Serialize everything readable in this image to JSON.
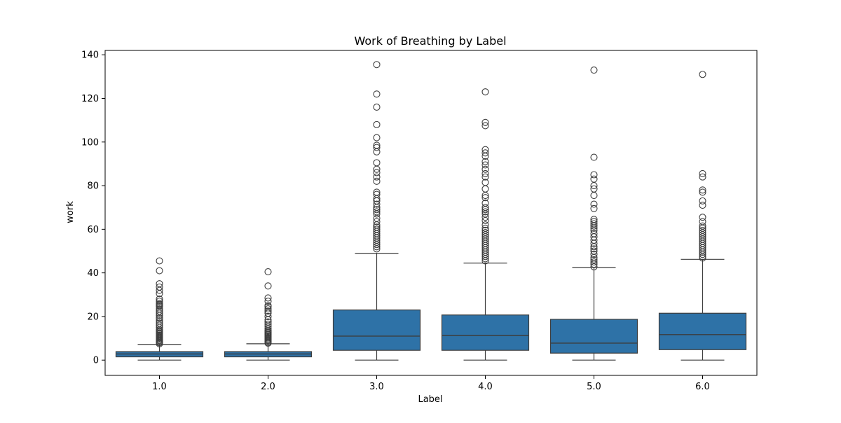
{
  "chart_data": {
    "type": "box",
    "title": "Work of Breathing by Label",
    "xlabel": "Label",
    "ylabel": "work",
    "categories": [
      "1.0",
      "2.0",
      "3.0",
      "4.0",
      "5.0",
      "6.0"
    ],
    "ylim": [
      -7,
      142
    ],
    "yticks": [
      0,
      20,
      40,
      60,
      80,
      100,
      120,
      140
    ],
    "grid": false,
    "color": "#2e72a7",
    "boxes": [
      {
        "label": "1.0",
        "whisker_low": 0,
        "q1": 1.5,
        "median": 2.8,
        "q3": 3.9,
        "whisker_high": 7.2,
        "outliers": [
          7.5,
          8.0,
          8.5,
          9.0,
          9.5,
          10.0,
          10.5,
          11.0,
          11.5,
          12.0,
          12.5,
          13.0,
          13.5,
          14.0,
          15.0,
          16.0,
          17.0,
          18.0,
          19.0,
          19.5,
          20.5,
          21.5,
          22.5,
          23.5,
          24.5,
          25.0,
          25.5,
          26.0,
          27.0,
          28.0,
          30.5,
          32.0,
          33.5,
          35.0,
          41.0,
          45.5
        ]
      },
      {
        "label": "2.0",
        "whisker_low": 0,
        "q1": 1.5,
        "median": 2.8,
        "q3": 3.9,
        "whisker_high": 7.5,
        "outliers": [
          7.8,
          8.2,
          8.7,
          9.2,
          9.7,
          10.2,
          10.7,
          11.2,
          11.7,
          12.2,
          12.7,
          13.2,
          13.7,
          14.5,
          15.5,
          16.5,
          17.5,
          18.5,
          20.0,
          21.5,
          22.5,
          23.5,
          24.5,
          25.0,
          27.0,
          28.5,
          34.0,
          40.5
        ]
      },
      {
        "label": "3.0",
        "whisker_low": 0,
        "q1": 4.5,
        "median": 11.0,
        "q3": 23.0,
        "whisker_high": 49.0,
        "outliers": [
          51.0,
          52.0,
          53.0,
          54.0,
          55.0,
          56.0,
          57.0,
          58.0,
          59.0,
          60.0,
          61.0,
          62.0,
          63.5,
          65.0,
          67.0,
          68.0,
          69.0,
          70.0,
          71.5,
          73.0,
          74.0,
          76.0,
          77.0,
          82.0,
          84.0,
          86.0,
          87.5,
          90.5,
          95.5,
          97.5,
          98.5,
          102.0,
          108.0,
          116.0,
          122.0,
          135.5
        ]
      },
      {
        "label": "4.0",
        "whisker_low": 0,
        "q1": 4.5,
        "median": 11.3,
        "q3": 20.7,
        "whisker_high": 44.5,
        "outliers": [
          45.5,
          46.5,
          47.5,
          48.5,
          49.5,
          50.5,
          51.5,
          52.5,
          53.5,
          54.5,
          55.5,
          56.5,
          57.5,
          58.5,
          59.5,
          60.5,
          62.0,
          64.0,
          65.5,
          67.0,
          68.0,
          69.0,
          70.0,
          72.0,
          74.5,
          75.5,
          78.5,
          81.5,
          84.0,
          85.5,
          87.5,
          89.5,
          91.0,
          93.5,
          95.0,
          96.5,
          107.5,
          109.0,
          123.0
        ]
      },
      {
        "label": "5.0",
        "whisker_low": 0,
        "q1": 3.2,
        "median": 7.8,
        "q3": 18.7,
        "whisker_high": 42.5,
        "outliers": [
          42.8,
          44.0,
          45.0,
          46.0,
          47.0,
          48.5,
          50.0,
          51.0,
          52.0,
          53.5,
          55.0,
          56.5,
          58.0,
          59.5,
          60.5,
          61.5,
          62.5,
          63.5,
          64.5,
          69.5,
          71.5,
          75.5,
          78.5,
          80.0,
          83.0,
          85.0,
          93.0,
          133.0
        ]
      },
      {
        "label": "6.0",
        "whisker_low": 0,
        "q1": 4.8,
        "median": 11.7,
        "q3": 21.5,
        "whisker_high": 46.2,
        "outliers": [
          46.8,
          47.5,
          48.5,
          49.5,
          50.5,
          51.5,
          52.5,
          53.5,
          54.5,
          55.5,
          56.5,
          57.5,
          58.5,
          59.5,
          60.5,
          61.5,
          63.5,
          65.5,
          71.0,
          73.0,
          77.0,
          78.0,
          84.0,
          85.5,
          131.0
        ]
      }
    ]
  }
}
